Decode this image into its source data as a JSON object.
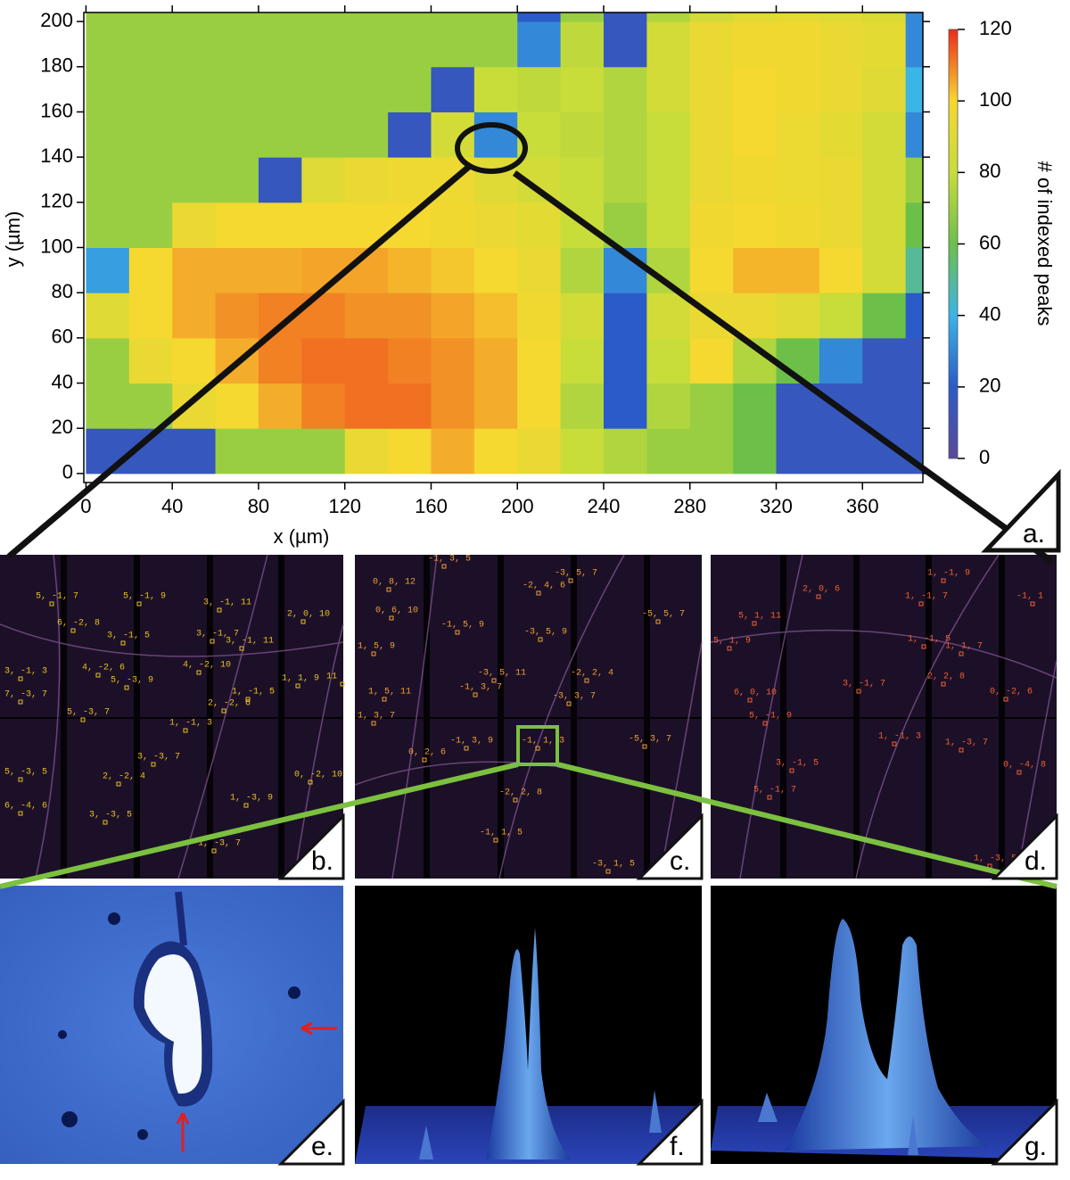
{
  "chart_data": {
    "type": "heatmap",
    "xlabel": "x (µm)",
    "ylabel": "y (µm)",
    "colorbar_label": "# of indexed peaks",
    "x": [
      0,
      20,
      40,
      60,
      80,
      100,
      120,
      140,
      160,
      180,
      200,
      220,
      240,
      260,
      280,
      300,
      320,
      340,
      360,
      380
    ],
    "y": [
      0,
      20,
      40,
      60,
      80,
      100,
      120,
      140,
      160,
      180,
      200
    ],
    "z": [
      [
        15,
        15,
        15,
        70,
        70,
        70,
        95,
        100,
        105,
        100,
        95,
        80,
        75,
        70,
        70,
        60,
        15,
        15,
        15,
        15
      ],
      [
        70,
        70,
        95,
        100,
        105,
        110,
        112,
        112,
        108,
        105,
        100,
        75,
        20,
        75,
        70,
        60,
        15,
        15,
        15,
        15
      ],
      [
        70,
        95,
        100,
        105,
        110,
        112,
        112,
        110,
        108,
        105,
        100,
        80,
        20,
        80,
        100,
        75,
        60,
        30,
        15,
        15
      ],
      [
        90,
        100,
        105,
        108,
        110,
        110,
        108,
        108,
        106,
        103,
        98,
        85,
        20,
        85,
        95,
        95,
        90,
        80,
        60,
        20
      ],
      [
        35,
        100,
        105,
        105,
        105,
        106,
        106,
        104,
        102,
        100,
        95,
        75,
        30,
        75,
        100,
        104,
        104,
        100,
        85,
        50
      ],
      [
        70,
        70,
        95,
        100,
        100,
        100,
        100,
        100,
        98,
        95,
        92,
        80,
        70,
        80,
        98,
        100,
        98,
        95,
        85,
        60
      ],
      [
        70,
        70,
        70,
        70,
        15,
        90,
        95,
        97,
        97,
        90,
        85,
        80,
        75,
        80,
        95,
        98,
        96,
        95,
        85,
        70
      ],
      [
        70,
        70,
        70,
        70,
        70,
        70,
        70,
        15,
        85,
        30,
        80,
        78,
        75,
        80,
        95,
        100,
        96,
        92,
        85,
        30
      ],
      [
        70,
        70,
        70,
        70,
        70,
        70,
        70,
        70,
        15,
        80,
        78,
        80,
        75,
        85,
        95,
        100,
        98,
        95,
        90,
        40
      ],
      [
        70,
        70,
        70,
        70,
        70,
        70,
        70,
        70,
        70,
        70,
        30,
        78,
        15,
        85,
        95,
        98,
        98,
        95,
        92,
        30
      ],
      [
        70,
        70,
        70,
        70,
        70,
        70,
        70,
        70,
        70,
        70,
        20,
        70,
        15,
        75,
        85,
        90,
        92,
        90,
        88,
        30
      ]
    ],
    "xlim": [
      -1,
      388
    ],
    "ylim": [
      -4,
      204
    ],
    "xticks": [
      0,
      40,
      80,
      120,
      160,
      200,
      240,
      280,
      320,
      360
    ],
    "yticks": [
      0,
      20,
      40,
      60,
      80,
      100,
      120,
      140,
      160,
      180,
      200
    ],
    "zlim": [
      0,
      120
    ],
    "zticks": [
      0,
      20,
      40,
      60,
      80,
      100,
      120
    ],
    "colorscale": [
      "#5a4a9a",
      "#2a5bc8",
      "#3bb4e6",
      "#6cc04a",
      "#c8dc3a",
      "#f5d830",
      "#ee2a18"
    ]
  },
  "panels": {
    "a": {
      "label": "a."
    },
    "b": {
      "label": "b.",
      "reflections": [
        "5, -1, 7",
        "5, -1, 9",
        "3, -1, 11",
        "2, 0, 10",
        "6, -2, 8",
        "3, -1, 5",
        "3, -1, 7",
        "3, -1, 11",
        "4, -2, 10",
        "3, -1, 3",
        "4, -2, 6",
        "5, -3, 9",
        "1, 1, 9",
        "11",
        "7, -3, 7",
        "2, -2, 6",
        "1, -1, 5",
        "5, -3, 7",
        "1, -1, 3",
        "3, -3, 7",
        "5, -3, 5",
        "2, -2, 4",
        "0, -2, 10",
        "1, -3, 9",
        "6, -4, 6",
        "3, -3, 5",
        "1, -3, 7"
      ]
    },
    "c": {
      "label": "c.",
      "reflections": [
        "-1, 3, 5",
        "0, 8, 12",
        "-3, 5, 7",
        "-2, 4, 6",
        "0, 6, 10",
        "-1, 5, 9",
        "-3, 5, 9",
        "-5, 5, 7",
        "1, 5, 9",
        "-3, 5, 11",
        "-2, 2, 4",
        "-1, 3, 7",
        "1, 5, 11",
        "-3, 3, 7",
        "1, 3, 7",
        "-1, 3, 9",
        "-1, 1, 3",
        "0, 2, 6",
        "-5, 3, 7",
        "-2, 2, 8",
        "-1, 1, 5",
        "-3, 1, 5"
      ]
    },
    "d": {
      "label": "d.",
      "reflections": [
        "1, -1, 9",
        "2, 0, 6",
        "1, -1, 7",
        "5, 1, 11",
        "-1, 1",
        "5, 1, 9",
        "1, -1, 5",
        "1, 1, 7",
        "2, 2, 8",
        "0, -2, 6",
        "3, -1, 7",
        "6, 0, 10",
        "5, -1, 9",
        "1, -1, 3",
        "1, -3, 7",
        "3, -1, 5",
        "0, -4, 8",
        "5, -1, 7",
        "1, -3, 5"
      ]
    },
    "e": {
      "label": "e."
    },
    "f": {
      "label": "f."
    },
    "g": {
      "label": "g."
    }
  }
}
